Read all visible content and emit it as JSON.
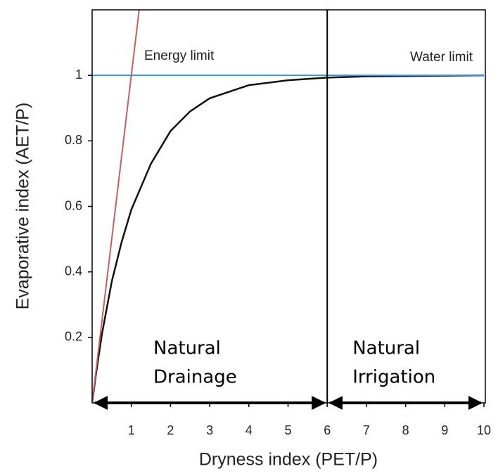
{
  "chart_data": {
    "type": "line",
    "xlabel": "Dryness index (PET/P)",
    "ylabel": "Evaporative index (AET/P)",
    "xlim": [
      0,
      10
    ],
    "ylim": [
      0,
      1.2
    ],
    "xticks": [
      1,
      2,
      3,
      4,
      5,
      6,
      7,
      8,
      9,
      10
    ],
    "yticks": [
      0.2,
      0.4,
      0.6,
      0.8,
      1
    ],
    "series": [
      {
        "color": "#111111",
        "x": [
          0,
          0.1,
          0.25,
          0.5,
          0.75,
          1,
          1.5,
          2,
          2.5,
          3,
          4,
          5,
          6,
          7,
          8,
          9,
          10
        ],
        "values": [
          0,
          0.09,
          0.21,
          0.37,
          0.49,
          0.59,
          0.73,
          0.83,
          0.89,
          0.93,
          0.97,
          0.985,
          0.993,
          0.997,
          0.998,
          0.999,
          1
        ]
      },
      {
        "name": "Energy limit",
        "color": "#c8605a",
        "x": [
          0,
          1.2
        ],
        "values": [
          0,
          1.2
        ]
      },
      {
        "name": "Water limit",
        "color": "#3d8fe0",
        "x": [
          0,
          10
        ],
        "values": [
          1,
          1
        ]
      }
    ],
    "threshold_x": 6,
    "regions": [
      {
        "lines": [
          "Natural",
          "Drainage"
        ]
      },
      {
        "lines": [
          "Natural",
          "Irrigation"
        ]
      }
    ]
  }
}
